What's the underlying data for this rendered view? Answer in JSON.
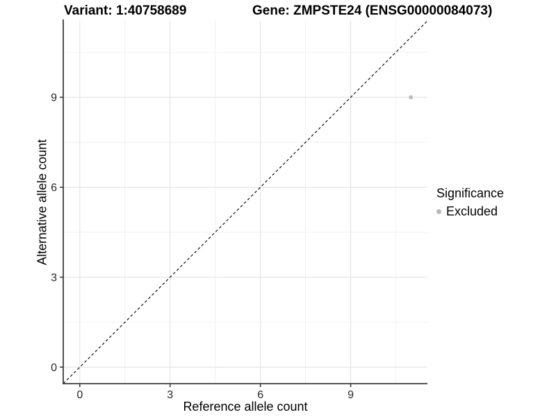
{
  "header": {
    "variant_title": "Variant: 1:40758689",
    "gene_title": "Gene: ZMPSTE24 (ENSG00000084073)"
  },
  "chart_data": {
    "type": "scatter",
    "title_left": "Variant: 1:40758689",
    "title_right": "Gene: ZMPSTE24 (ENSG00000084073)",
    "xlabel": "Reference allele count",
    "ylabel": "Alternative allele count",
    "xlim": [
      -0.55,
      11.55
    ],
    "ylim": [
      -0.55,
      11.55
    ],
    "x_major_ticks": [
      0,
      3,
      6,
      9
    ],
    "y_major_ticks": [
      0,
      3,
      6,
      9
    ],
    "x_minor_ticks": [
      1.5,
      4.5,
      7.5,
      10.5
    ],
    "y_minor_ticks": [
      1.5,
      4.5,
      7.5,
      10.5
    ],
    "grid": true,
    "reference_line": {
      "kind": "identity-abline",
      "slope": 1,
      "intercept": 0,
      "style": "dashed",
      "color": "#111111"
    },
    "series": [
      {
        "name": "Excluded",
        "color": "#bcbcbc",
        "point_radius": 3,
        "points": [
          {
            "x": 11,
            "y": 9
          }
        ]
      }
    ],
    "legend": {
      "title": "Significance",
      "position": "right",
      "items": [
        {
          "label": "Excluded",
          "color": "#b8b8b8"
        }
      ]
    }
  },
  "colors": {
    "background": "#ffffff",
    "grid_major": "#e4e4e4",
    "grid_minor": "#f1f1f1",
    "axis_line": "#3c3c3c",
    "tick_mark": "#333333",
    "tick_label": "#262626",
    "title_text": "#000000"
  }
}
